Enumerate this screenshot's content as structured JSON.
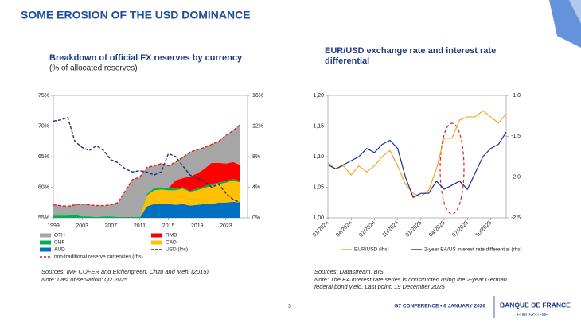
{
  "slide": {
    "title": "SOME EROSION OF THE USD DOMINANCE",
    "page": "3",
    "footer": "G7 CONFERENCE • 6 JANUARY 2026",
    "brand": "BANQUE DE FRANCE",
    "brand_sub": "EUROSYSTÈME"
  },
  "chart_data": [
    {
      "type": "stacked_area",
      "title": "Breakdown of official FX reserves by currency",
      "subtitle": "(% of allocated reserves)",
      "x": [
        1999,
        2000,
        2001,
        2002,
        2003,
        2004,
        2005,
        2006,
        2007,
        2008,
        2009,
        2010,
        2011,
        2012,
        2013,
        2014,
        2015,
        2016,
        2017,
        2018,
        2019,
        2020,
        2021,
        2022,
        2023,
        2024,
        2025
      ],
      "xlim": [
        1999,
        2026
      ],
      "xticks": [
        1999,
        2003,
        2007,
        2011,
        2015,
        2019,
        2023
      ],
      "ylim": [
        55,
        75
      ],
      "yticks": [
        {
          "value": 55,
          "label": "55%"
        },
        {
          "value": 60,
          "label": "60%"
        },
        {
          "value": 65,
          "label": "65%"
        },
        {
          "value": 70,
          "label": "70%"
        },
        {
          "value": 75,
          "label": "75%"
        }
      ],
      "y2lim": [
        0,
        16
      ],
      "y2ticks": [
        {
          "value": 0,
          "label": "0%"
        },
        {
          "value": 4,
          "label": "4%"
        },
        {
          "value": 8,
          "label": "8%"
        },
        {
          "value": 12,
          "label": "12%"
        },
        {
          "value": 16,
          "label": "16%"
        }
      ],
      "series": [
        {
          "name": "OTH",
          "color": "#a6a6a6",
          "mark": "area",
          "axis": "y2",
          "values": [
            1.4,
            1.3,
            1.2,
            1.3,
            1.6,
            1.5,
            1.5,
            1.4,
            1.5,
            1.9,
            3.4,
            4.9,
            5.2,
            3.5,
            2.9,
            3.1,
            2.9,
            2.4,
            2.7,
            3.2,
            3.1,
            2.8,
            2.4,
            2.8,
            3.7,
            4.1,
            5.3
          ]
        },
        {
          "name": "RMB",
          "color": "#ff0000",
          "mark": "area",
          "axis": "y2",
          "values": [
            0,
            0,
            0,
            0,
            0,
            0,
            0,
            0,
            0,
            0,
            0,
            0,
            0,
            0,
            0,
            0,
            0,
            1.1,
            1.2,
            1.9,
            2.0,
            2.3,
            2.8,
            2.6,
            2.3,
            2.2,
            2.1
          ]
        },
        {
          "name": "CHF",
          "color": "#00b050",
          "mark": "area",
          "axis": "y2",
          "values": [
            0.3,
            0.3,
            0.3,
            0.4,
            0.2,
            0.2,
            0.1,
            0.2,
            0.2,
            0.1,
            0.1,
            0.1,
            0.1,
            0.2,
            0.3,
            0.3,
            0.3,
            0.2,
            0.2,
            0.1,
            0.2,
            0.2,
            0.2,
            0.2,
            0.2,
            0.2,
            0.2
          ]
        },
        {
          "name": "CAD",
          "color": "#ffc000",
          "mark": "area",
          "axis": "y2",
          "values": [
            0,
            0,
            0,
            0,
            0,
            0,
            0,
            0,
            0,
            0,
            0,
            0,
            0,
            1.4,
            1.8,
            1.9,
            1.8,
            1.9,
            2.0,
            1.8,
            1.9,
            2.1,
            2.4,
            2.4,
            2.6,
            2.8,
            2.6
          ]
        },
        {
          "name": "AUD",
          "color": "#0070c0",
          "mark": "area",
          "axis": "y2",
          "values": [
            0,
            0,
            0,
            0,
            0,
            0,
            0,
            0,
            0,
            0,
            0,
            0,
            0,
            1.5,
            1.8,
            1.8,
            1.8,
            1.7,
            1.8,
            1.6,
            1.7,
            1.8,
            1.8,
            2.0,
            2.0,
            2.1,
            2.0
          ]
        },
        {
          "name": "USD (lhs)",
          "color": "#1f2f7a",
          "mark": "line",
          "dashed": true,
          "values": [
            70.8,
            71,
            71.4,
            67.5,
            66.5,
            66,
            66.8,
            66,
            64.5,
            64,
            63,
            62.5,
            62.7,
            62.5,
            62,
            62.5,
            65.5,
            65,
            63.5,
            62,
            61.5,
            61,
            60,
            60.5,
            59,
            58,
            57.5
          ]
        },
        {
          "name": "non-traditional reserve currencies (rhs)",
          "color": "#e02020",
          "mark": "line",
          "dashed": true,
          "axis": "y2",
          "values": [
            1.7,
            1.6,
            1.5,
            1.7,
            1.8,
            1.7,
            1.6,
            1.6,
            1.7,
            2.0,
            3.5,
            5.0,
            5.3,
            6.6,
            6.8,
            7.1,
            6.8,
            7.3,
            7.9,
            8.6,
            8.9,
            9.2,
            9.6,
            10.0,
            10.8,
            11.4,
            12.2
          ]
        }
      ],
      "sources": "Sources: IMF COFER and Eichengreen, Chitu and Mehl (2015).",
      "note": "Note: Last observation: Q2 2025"
    },
    {
      "type": "line",
      "title": "EUR/USD exchange rate and interest rate differential",
      "categories": [
        "01/2024",
        null,
        null,
        "04/2024",
        null,
        null,
        "07/2024",
        null,
        null,
        "10/2024",
        null,
        null,
        "01/2025",
        null,
        null,
        "04/2025",
        null,
        null,
        "07/2025",
        null,
        null,
        "10/2025",
        null,
        null
      ],
      "ylim": [
        1.0,
        1.2
      ],
      "yticks": [
        {
          "value": 1.0,
          "label": "1,00"
        },
        {
          "value": 1.05,
          "label": "1,05"
        },
        {
          "value": 1.1,
          "label": "1,10"
        },
        {
          "value": 1.15,
          "label": "1,15"
        },
        {
          "value": 1.2,
          "label": "1,20"
        }
      ],
      "y2lim": [
        -2.5,
        -1.0
      ],
      "y2ticks": [
        {
          "value": -2.5,
          "label": "-2,5"
        },
        {
          "value": -2.0,
          "label": "-2,0"
        },
        {
          "value": -1.5,
          "label": "-1,5"
        },
        {
          "value": -1.0,
          "label": "-1,0"
        }
      ],
      "series": [
        {
          "name": "EUR/USD (lhs)",
          "color": "#f5a623",
          "values": [
            1.09,
            1.08,
            1.085,
            1.07,
            1.085,
            1.075,
            1.085,
            1.1,
            1.11,
            1.085,
            1.055,
            1.04,
            1.035,
            1.045,
            1.08,
            1.13,
            1.13,
            1.16,
            1.165,
            1.165,
            1.175,
            1.165,
            1.155,
            1.17
          ]
        },
        {
          "name": "2-year EA/US interest rate differential (rhs)",
          "color": "#1f2f8f",
          "axis": "y2",
          "values": [
            -1.85,
            -1.9,
            -1.85,
            -1.8,
            -1.75,
            -1.65,
            -1.7,
            -1.6,
            -1.55,
            -1.65,
            -2.0,
            -2.25,
            -2.2,
            -2.2,
            -2.05,
            -2.15,
            -2.1,
            -2.05,
            -2.15,
            -1.95,
            -1.75,
            -1.65,
            -1.6,
            -1.45
          ]
        }
      ],
      "sources": "Sources: Datastream, BIS.",
      "note": "Note: The EA interest rate series is constructed using the 2-year German federal bond yield. Last point: 19 December 2025"
    }
  ]
}
